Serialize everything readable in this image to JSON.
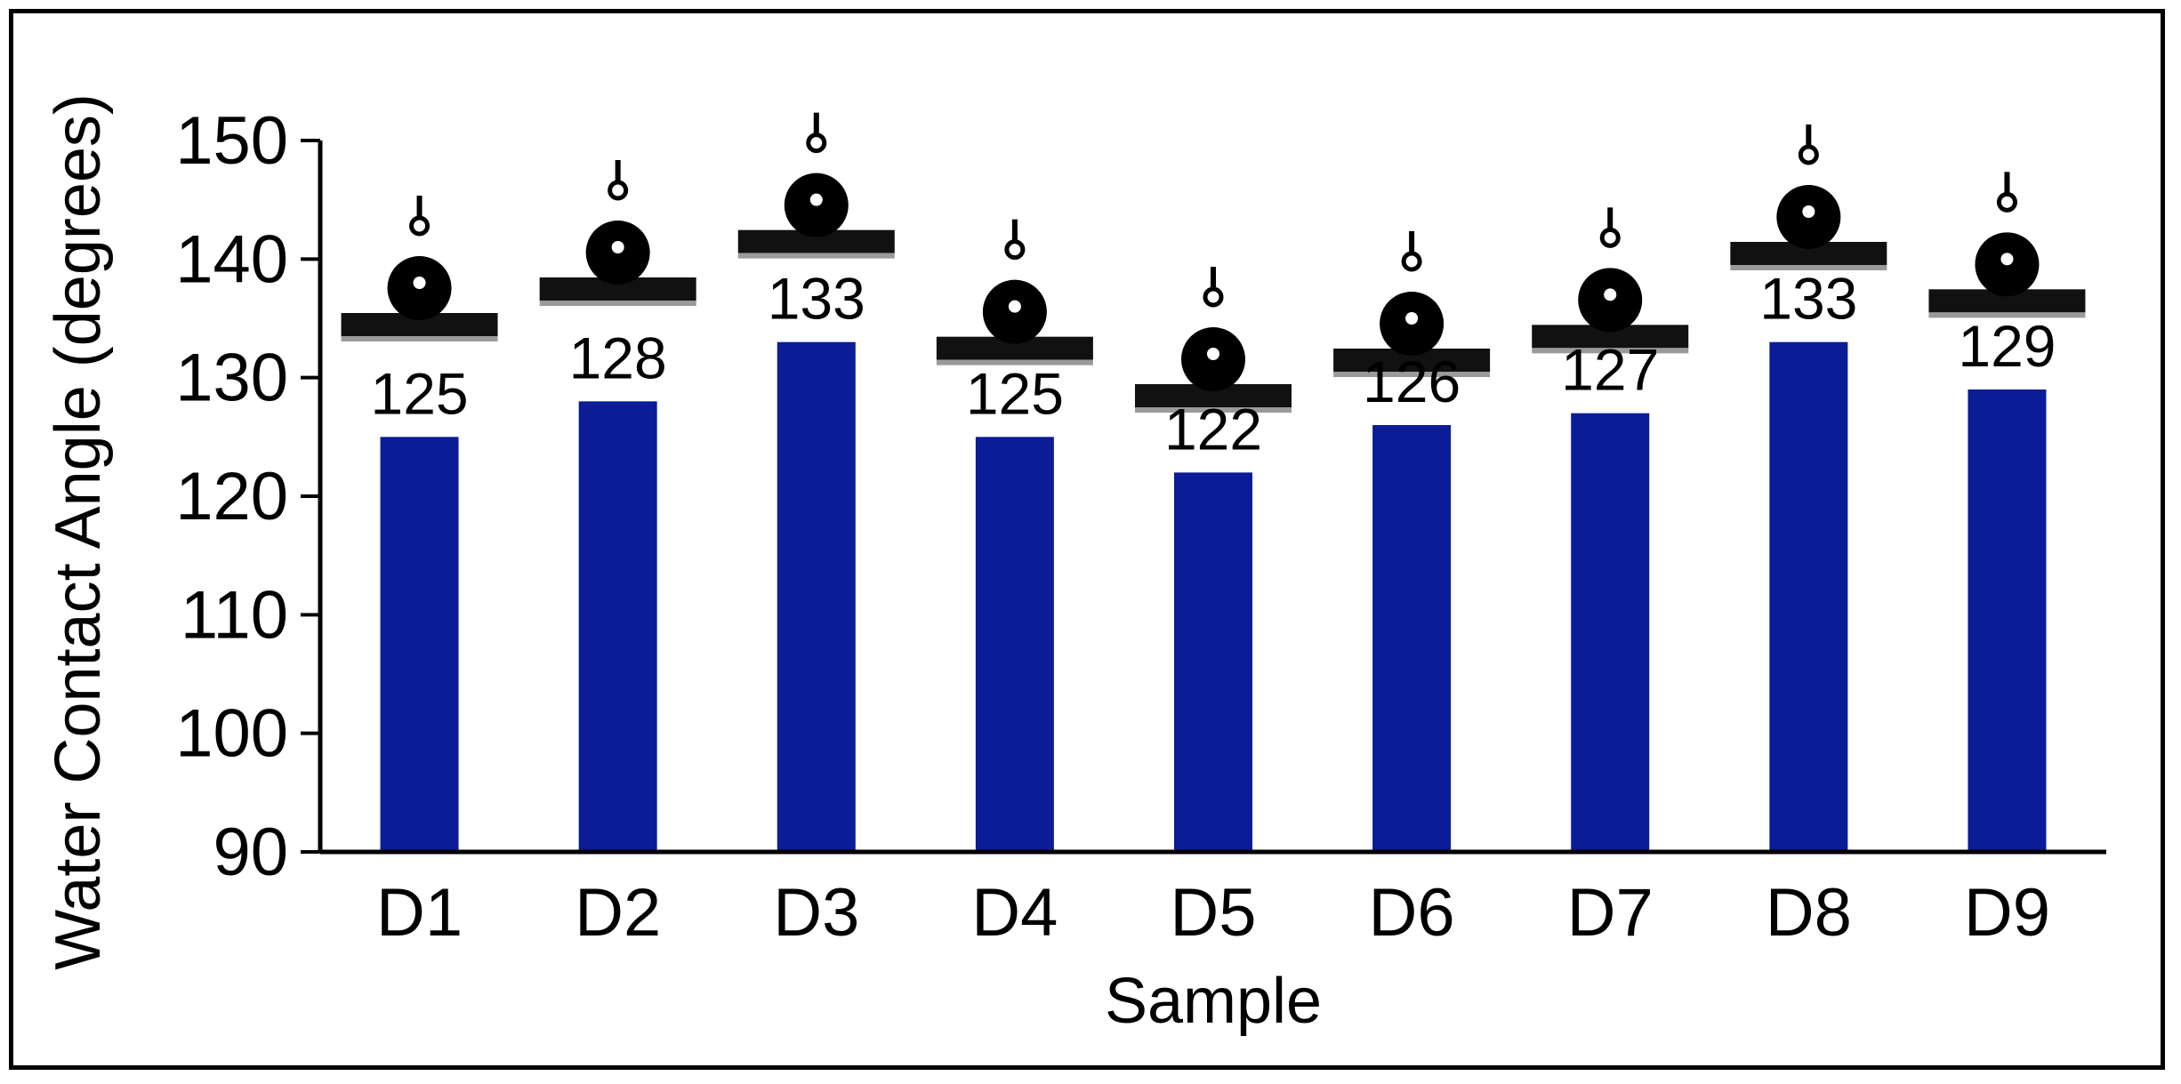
{
  "chart_data": {
    "type": "bar",
    "title": "",
    "xlabel": "Sample",
    "ylabel": "Water Contact Angle (degrees)",
    "categories": [
      "D1",
      "D2",
      "D3",
      "D4",
      "D5",
      "D6",
      "D7",
      "D8",
      "D9"
    ],
    "values": [
      125,
      128,
      133,
      125,
      122,
      126,
      127,
      133,
      129
    ],
    "data_labels": [
      "125",
      "128",
      "133",
      "125",
      "122",
      "126",
      "127",
      "133",
      "129"
    ],
    "ylim": [
      90,
      150
    ],
    "yticks": [
      "90",
      "100",
      "110",
      "120",
      "130",
      "140",
      "150"
    ],
    "ytick_values": [
      90,
      100,
      110,
      120,
      130,
      140,
      150
    ],
    "droplet_insets": [
      {
        "category": "D1",
        "contact_angle": 138
      },
      {
        "category": "D2",
        "contact_angle": 141
      },
      {
        "category": "D3",
        "contact_angle": 145
      },
      {
        "category": "D4",
        "contact_angle": 136
      },
      {
        "category": "D5",
        "contact_angle": 132
      },
      {
        "category": "D6",
        "contact_angle": 135
      },
      {
        "category": "D7",
        "contact_angle": 137
      },
      {
        "category": "D8",
        "contact_angle": 144
      },
      {
        "category": "D9",
        "contact_angle": 140
      }
    ],
    "grid": false,
    "legend": "none",
    "bar_color": "#0a1c96",
    "axis_color": "#000000"
  }
}
